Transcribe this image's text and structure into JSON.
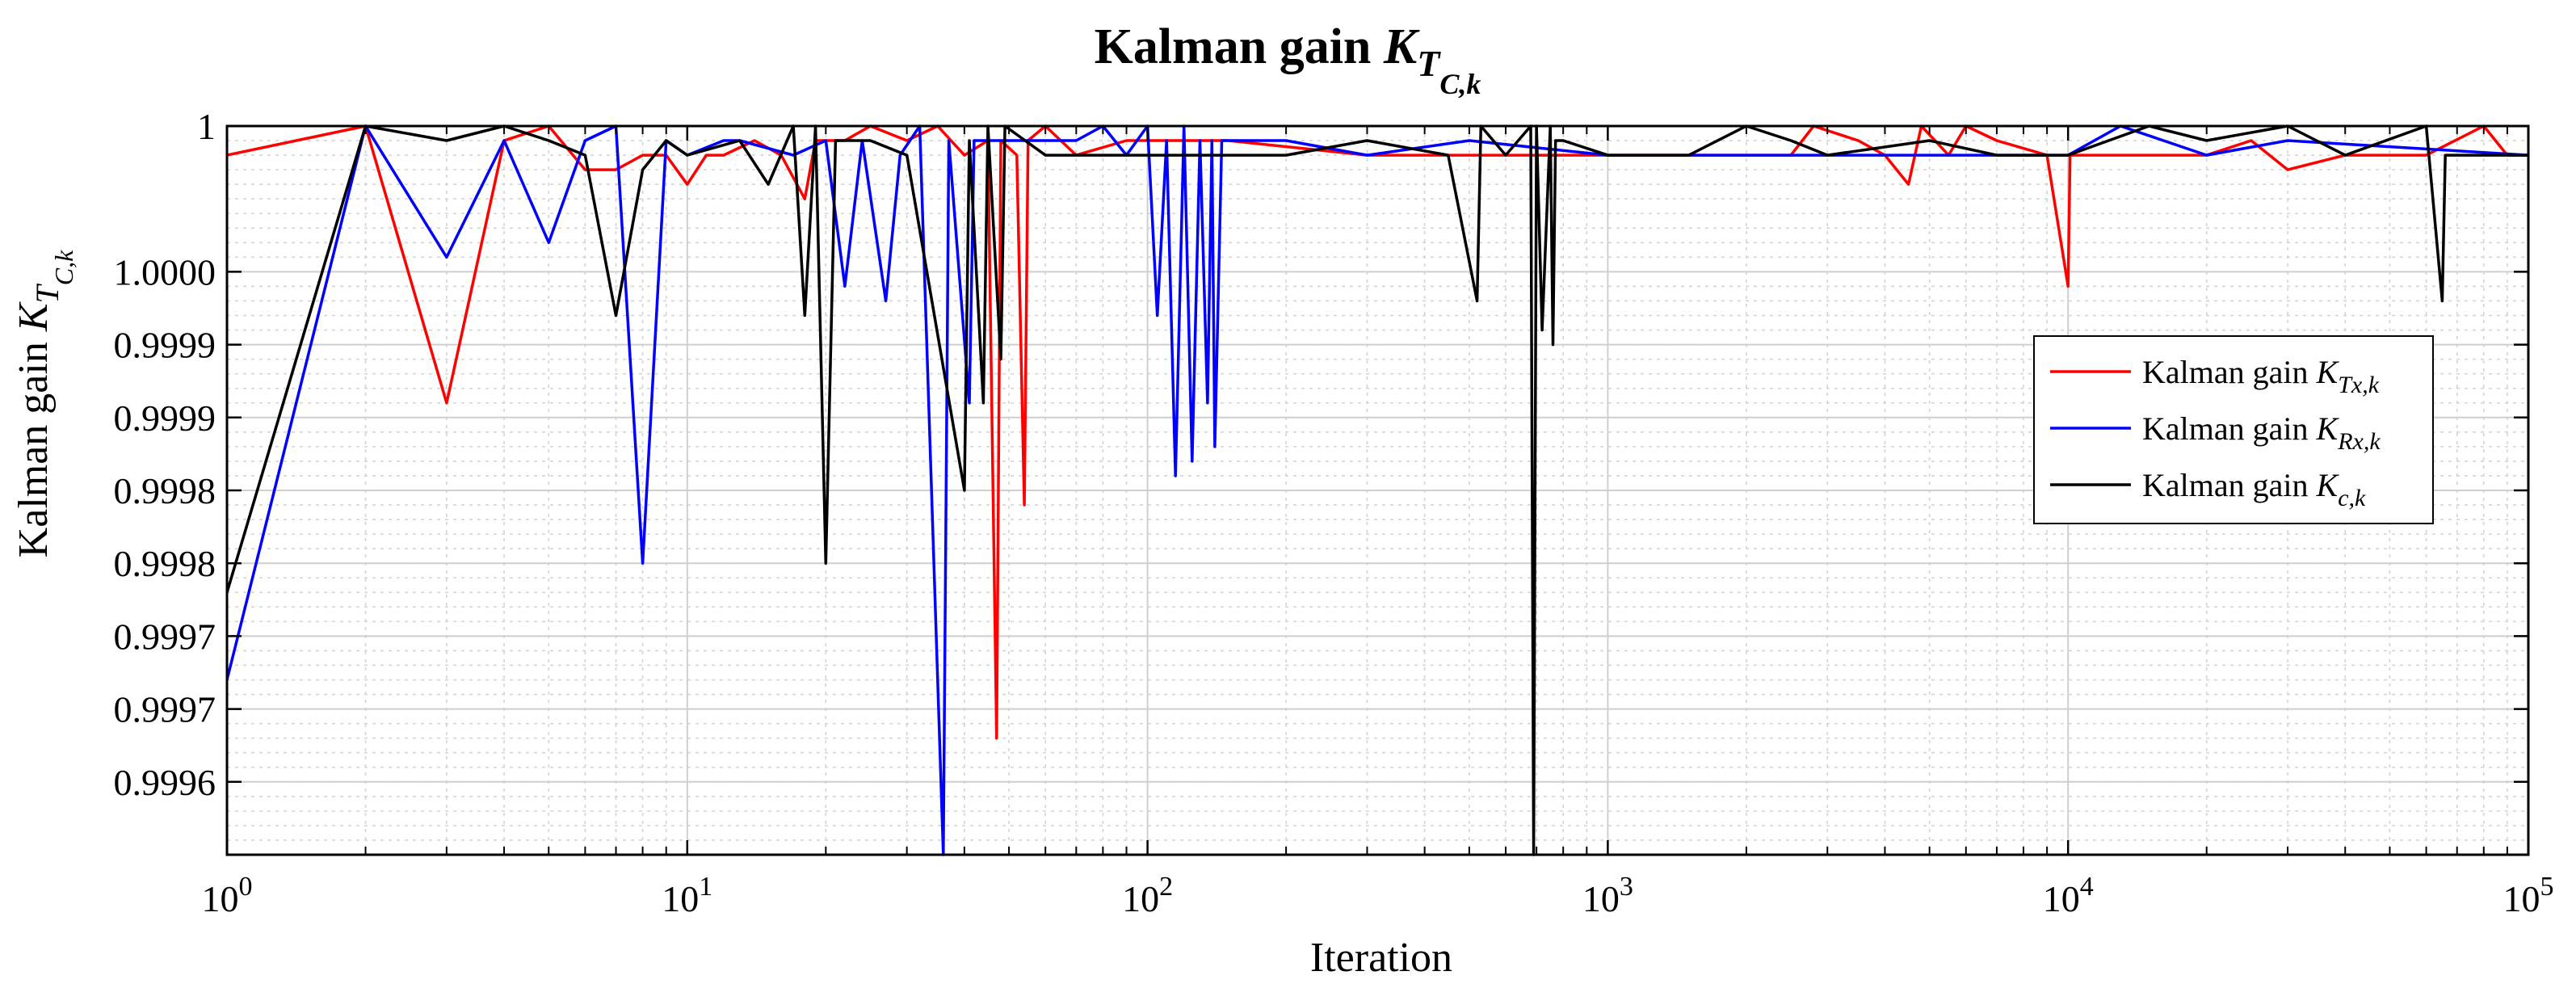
{
  "chart_data": {
    "type": "line",
    "title": "Kalman gain",
    "title_symbol": "K",
    "title_sub": "T",
    "title_subsub": "C,k",
    "xlabel": "Iteration",
    "ylabel": "Kalman gain",
    "ylabel_symbol": "K",
    "ylabel_sub": "T",
    "ylabel_subsub": "C,k",
    "xscale": "log",
    "xlim": [
      1,
      100000
    ],
    "ylim": [
      0.9996,
      1.0001
    ],
    "grid": true,
    "minor_grid": true,
    "x_ticks": [
      {
        "value": 1,
        "base": "10",
        "exp": "0"
      },
      {
        "value": 10,
        "base": "10",
        "exp": "1"
      },
      {
        "value": 100,
        "base": "10",
        "exp": "2"
      },
      {
        "value": 1000,
        "base": "10",
        "exp": "3"
      },
      {
        "value": 10000,
        "base": "10",
        "exp": "4"
      },
      {
        "value": 100000,
        "base": "10",
        "exp": "5"
      }
    ],
    "y_ticks": [
      {
        "value": 1.0001,
        "label": "1"
      },
      {
        "value": 1.0,
        "label": "1.0000"
      },
      {
        "value": 0.99995,
        "label": "0.9999"
      },
      {
        "value": 0.9999,
        "label": "0.9999"
      },
      {
        "value": 0.99985,
        "label": "0.9998"
      },
      {
        "value": 0.9998,
        "label": "0.9998"
      },
      {
        "value": 0.99975,
        "label": "0.9997"
      },
      {
        "value": 0.9997,
        "label": "0.9997"
      },
      {
        "value": 0.99965,
        "label": "0.9996"
      }
    ],
    "legend_position": "right",
    "series": [
      {
        "name": "Kalman gain",
        "symbol": "K",
        "sub": "Tx,k",
        "color": "#ff0000",
        "points": [
          [
            1,
            1.00008
          ],
          [
            2,
            1.0001
          ],
          [
            3,
            0.99991
          ],
          [
            4,
            1.00009
          ],
          [
            5,
            1.0001
          ],
          [
            6,
            1.00007
          ],
          [
            7,
            1.00007
          ],
          [
            8,
            1.00008
          ],
          [
            9,
            1.00008
          ],
          [
            10,
            1.00006
          ],
          [
            11,
            1.00008
          ],
          [
            12,
            1.00008
          ],
          [
            14,
            1.00009
          ],
          [
            16,
            1.00008
          ],
          [
            18,
            1.00005
          ],
          [
            19,
            1.00009
          ],
          [
            22,
            1.00009
          ],
          [
            25,
            1.0001
          ],
          [
            30,
            1.00009
          ],
          [
            35,
            1.0001
          ],
          [
            40,
            1.00008
          ],
          [
            45,
            1.00009
          ],
          [
            47,
            0.99968
          ],
          [
            48,
            1.00009
          ],
          [
            52,
            1.00008
          ],
          [
            54,
            0.99984
          ],
          [
            55,
            1.00009
          ],
          [
            60,
            1.0001
          ],
          [
            70,
            1.00008
          ],
          [
            90,
            1.00009
          ],
          [
            150,
            1.00009
          ],
          [
            300,
            1.00008
          ],
          [
            1000,
            1.00008
          ],
          [
            2500,
            1.00008
          ],
          [
            2800,
            1.0001
          ],
          [
            3500,
            1.00009
          ],
          [
            4000,
            1.00008
          ],
          [
            4500,
            1.00006
          ],
          [
            4800,
            1.0001
          ],
          [
            5500,
            1.00008
          ],
          [
            6000,
            1.0001
          ],
          [
            7000,
            1.00009
          ],
          [
            9000,
            1.00008
          ],
          [
            10000,
            0.99999
          ],
          [
            10100,
            1.00008
          ],
          [
            15000,
            1.00008
          ],
          [
            20000,
            1.00008
          ],
          [
            25000,
            1.00009
          ],
          [
            30000,
            1.00007
          ],
          [
            40000,
            1.00008
          ],
          [
            60000,
            1.00008
          ],
          [
            80000,
            1.0001
          ],
          [
            90000,
            1.00008
          ],
          [
            100000,
            1.00008
          ]
        ]
      },
      {
        "name": "Kalman gain",
        "symbol": "K",
        "sub": "Rx,k",
        "color": "#0000ff",
        "points": [
          [
            1,
            0.99972
          ],
          [
            2,
            1.0001
          ],
          [
            3,
            1.00001
          ],
          [
            4,
            1.00009
          ],
          [
            5,
            1.00002
          ],
          [
            6,
            1.00009
          ],
          [
            7,
            1.0001
          ],
          [
            8,
            0.9998
          ],
          [
            9,
            1.00009
          ],
          [
            10,
            1.00008
          ],
          [
            12,
            1.00009
          ],
          [
            13,
            1.00009
          ],
          [
            17,
            1.00008
          ],
          [
            20,
            1.00009
          ],
          [
            22,
            0.99999
          ],
          [
            24,
            1.00009
          ],
          [
            27,
            0.99998
          ],
          [
            29,
            1.00008
          ],
          [
            32,
            1.0001
          ],
          [
            36,
            0.9996
          ],
          [
            37,
            1.00009
          ],
          [
            41,
            0.99991
          ],
          [
            42,
            1.00009
          ],
          [
            50,
            1.00009
          ],
          [
            70,
            1.00009
          ],
          [
            80,
            1.0001
          ],
          [
            90,
            1.00008
          ],
          [
            100,
            1.0001
          ],
          [
            105,
            0.99997
          ],
          [
            110,
            1.00009
          ],
          [
            115,
            0.99986
          ],
          [
            120,
            1.0001
          ],
          [
            125,
            0.99987
          ],
          [
            130,
            1.00009
          ],
          [
            135,
            0.99991
          ],
          [
            138,
            1.00009
          ],
          [
            140,
            0.99988
          ],
          [
            145,
            1.00009
          ],
          [
            200,
            1.00009
          ],
          [
            300,
            1.00008
          ],
          [
            500,
            1.00009
          ],
          [
            1000,
            1.00008
          ],
          [
            3000,
            1.00008
          ],
          [
            5000,
            1.00008
          ],
          [
            10000,
            1.00008
          ],
          [
            13000,
            1.0001
          ],
          [
            20000,
            1.00008
          ],
          [
            30000,
            1.00009
          ],
          [
            100000,
            1.00008
          ]
        ]
      },
      {
        "name": "Kalman gain",
        "symbol": "K",
        "sub": "c,k",
        "color": "#000000",
        "points": [
          [
            1,
            0.99978
          ],
          [
            2,
            1.0001
          ],
          [
            3,
            1.00009
          ],
          [
            4,
            1.0001
          ],
          [
            5,
            1.00009
          ],
          [
            6,
            1.00008
          ],
          [
            7,
            0.99997
          ],
          [
            8,
            1.00007
          ],
          [
            9,
            1.00009
          ],
          [
            10,
            1.00008
          ],
          [
            13,
            1.00009
          ],
          [
            15,
            1.00006
          ],
          [
            17,
            1.0001
          ],
          [
            18,
            0.99997
          ],
          [
            19,
            1.0001
          ],
          [
            20,
            0.9998
          ],
          [
            21,
            1.00009
          ],
          [
            25,
            1.00009
          ],
          [
            30,
            1.00008
          ],
          [
            40,
            0.99985
          ],
          [
            41,
            1.00009
          ],
          [
            44,
            0.99991
          ],
          [
            45,
            1.0001
          ],
          [
            48,
            0.99994
          ],
          [
            49,
            1.0001
          ],
          [
            60,
            1.00008
          ],
          [
            100,
            1.00008
          ],
          [
            200,
            1.00008
          ],
          [
            300,
            1.00009
          ],
          [
            450,
            1.00008
          ],
          [
            520,
            0.99998
          ],
          [
            530,
            1.0001
          ],
          [
            600,
            1.00008
          ],
          [
            680,
            1.0001
          ],
          [
            690,
            0.9996
          ],
          [
            700,
            1.0001
          ],
          [
            720,
            0.99996
          ],
          [
            750,
            1.0001
          ],
          [
            760,
            0.99995
          ],
          [
            770,
            1.00009
          ],
          [
            800,
            1.00009
          ],
          [
            1000,
            1.00008
          ],
          [
            1500,
            1.00008
          ],
          [
            2000,
            1.0001
          ],
          [
            2500,
            1.00009
          ],
          [
            3000,
            1.00008
          ],
          [
            5000,
            1.00009
          ],
          [
            7000,
            1.00008
          ],
          [
            10000,
            1.00008
          ],
          [
            15000,
            1.0001
          ],
          [
            20000,
            1.00009
          ],
          [
            30000,
            1.0001
          ],
          [
            40000,
            1.00008
          ],
          [
            60000,
            1.0001
          ],
          [
            65000,
            0.99998
          ],
          [
            66000,
            1.00008
          ],
          [
            80000,
            1.00008
          ],
          [
            100000,
            1.00008
          ]
        ]
      }
    ]
  }
}
